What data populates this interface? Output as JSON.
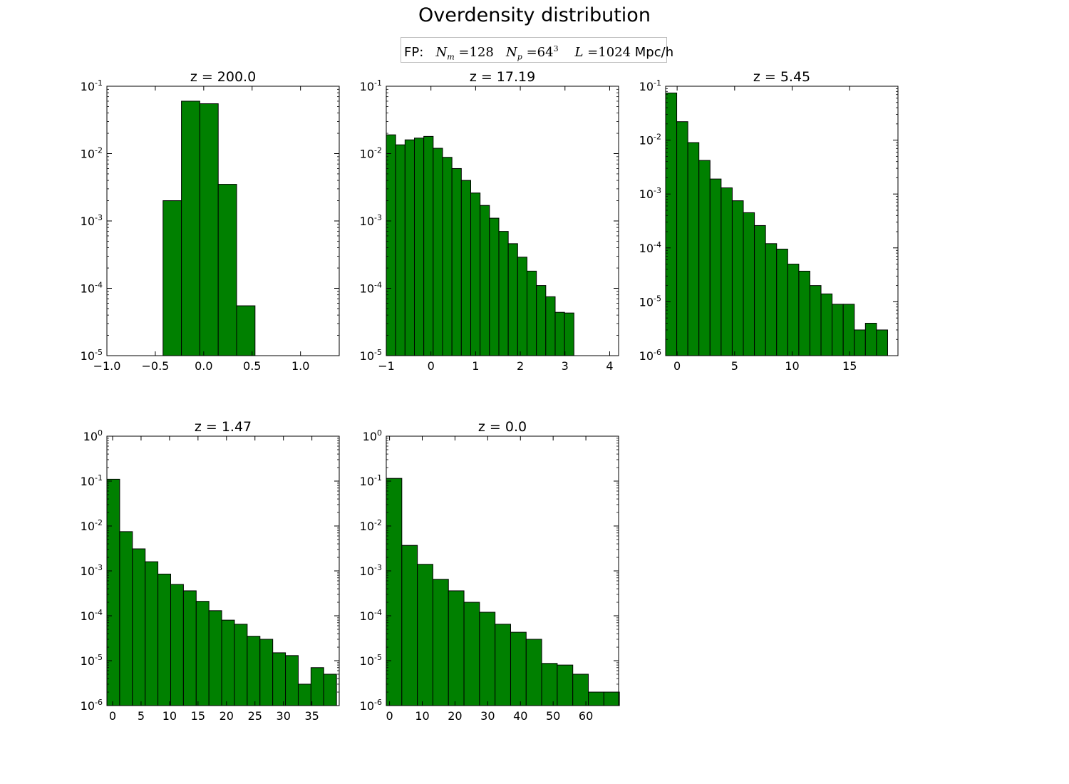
{
  "figure": {
    "title": "Overdensity distribution",
    "annotation": {
      "prefix": "FP:",
      "nm_symbol": "N",
      "nm_sub": "m",
      "nm_value": "=128",
      "np_symbol": "N",
      "np_sub": "p",
      "np_value": "=64",
      "np_sup": "3",
      "l_symbol": "L",
      "l_value": "=1024",
      "unit": "Mpc/h"
    },
    "bar_color": "#008000",
    "edge_color": "#000000"
  },
  "chart_data": [
    {
      "type": "bar",
      "title": "z = 200.0",
      "log_y": true,
      "xlim": [
        -1.0,
        1.4
      ],
      "ylim_exp": [
        -5,
        -1
      ],
      "xticks": [
        -1.0,
        -0.5,
        0.0,
        0.5,
        1.0
      ],
      "xtick_labels": [
        "−1.0",
        "−0.5",
        "0.0",
        "0.5",
        "1.0"
      ],
      "bin_edges": [
        -0.42,
        -0.23,
        -0.04,
        0.15,
        0.34,
        0.53
      ],
      "values": [
        0.002,
        0.06,
        0.055,
        0.0035,
        5.5e-05
      ]
    },
    {
      "type": "bar",
      "title": "z = 17.19",
      "log_y": true,
      "xlim": [
        -1.0,
        4.2
      ],
      "ylim_exp": [
        -5,
        -1
      ],
      "xticks": [
        -1,
        0,
        1,
        2,
        3,
        4
      ],
      "xtick_labels": [
        "−1",
        "0",
        "1",
        "2",
        "3",
        "4"
      ],
      "bin_edges": [
        -1.0,
        -0.79,
        -0.58,
        -0.37,
        -0.16,
        0.05,
        0.26,
        0.47,
        0.68,
        0.89,
        1.1,
        1.31,
        1.52,
        1.73,
        1.94,
        2.15,
        2.36,
        2.57,
        2.78,
        2.99,
        3.2
      ],
      "values": [
        0.019,
        0.0135,
        0.016,
        0.017,
        0.018,
        0.012,
        0.0088,
        0.006,
        0.004,
        0.0026,
        0.0017,
        0.0011,
        0.0007,
        0.00046,
        0.00029,
        0.00018,
        0.00011,
        7.5e-05,
        4.4e-05,
        4.3e-05
      ]
    },
    {
      "type": "bar",
      "title": "z = 5.45",
      "log_y": true,
      "xlim": [
        -1.0,
        19.2
      ],
      "ylim_exp": [
        -6,
        -1
      ],
      "xticks": [
        0,
        5,
        10,
        15
      ],
      "xtick_labels": [
        "0",
        "5",
        "10",
        "15"
      ],
      "bin_edges": [
        -1.0,
        -0.035,
        0.93,
        1.895,
        2.86,
        3.825,
        4.79,
        5.755,
        6.72,
        7.685,
        8.65,
        9.615,
        10.58,
        11.545,
        12.51,
        13.475,
        14.44,
        15.405,
        16.37,
        17.335,
        18.3
      ],
      "values": [
        0.075,
        0.022,
        0.009,
        0.0042,
        0.0019,
        0.0013,
        0.00075,
        0.00045,
        0.00026,
        0.00012,
        9.5e-05,
        5e-05,
        3.7e-05,
        2e-05,
        1.4e-05,
        9e-06,
        9e-06,
        3e-06,
        4e-06,
        3e-06
      ]
    },
    {
      "type": "bar",
      "title": "z = 1.47",
      "log_y": true,
      "xlim": [
        -1.0,
        39.8
      ],
      "ylim_exp": [
        -6,
        0
      ],
      "xticks": [
        0,
        5,
        10,
        15,
        20,
        25,
        30,
        35
      ],
      "xtick_labels": [
        "0",
        "5",
        "10",
        "15",
        "20",
        "25",
        "30",
        "35"
      ],
      "bin_edges": [
        -1.0,
        1.24,
        3.48,
        5.72,
        7.96,
        10.2,
        12.44,
        14.68,
        16.92,
        19.16,
        21.4,
        23.64,
        25.88,
        28.12,
        30.36,
        32.6,
        34.84,
        37.08,
        39.32
      ],
      "values": [
        0.11,
        0.0075,
        0.0031,
        0.0016,
        0.00085,
        0.0005,
        0.00036,
        0.00021,
        0.00013,
        8e-05,
        6.5e-05,
        3.5e-05,
        3e-05,
        1.5e-05,
        1.3e-05,
        3e-06,
        7e-06,
        5e-06
      ]
    },
    {
      "type": "bar",
      "title": "z = 0.0",
      "log_y": true,
      "xlim": [
        -1.0,
        70.0
      ],
      "ylim_exp": [
        -6,
        0
      ],
      "xticks": [
        0,
        10,
        20,
        30,
        40,
        50,
        60
      ],
      "xtick_labels": [
        "0",
        "10",
        "20",
        "30",
        "40",
        "50",
        "60"
      ],
      "bin_edges": [
        -1.0,
        3.75,
        8.5,
        13.25,
        18.0,
        22.75,
        27.5,
        32.25,
        37.0,
        41.75,
        46.5,
        51.25,
        56.0,
        60.75,
        65.5,
        70.25
      ],
      "values": [
        0.115,
        0.0037,
        0.0014,
        0.00065,
        0.00036,
        0.0002,
        0.00012,
        6.5e-05,
        4.3e-05,
        3e-05,
        8.7e-06,
        8e-06,
        5e-06,
        2e-06,
        2e-06
      ]
    }
  ]
}
